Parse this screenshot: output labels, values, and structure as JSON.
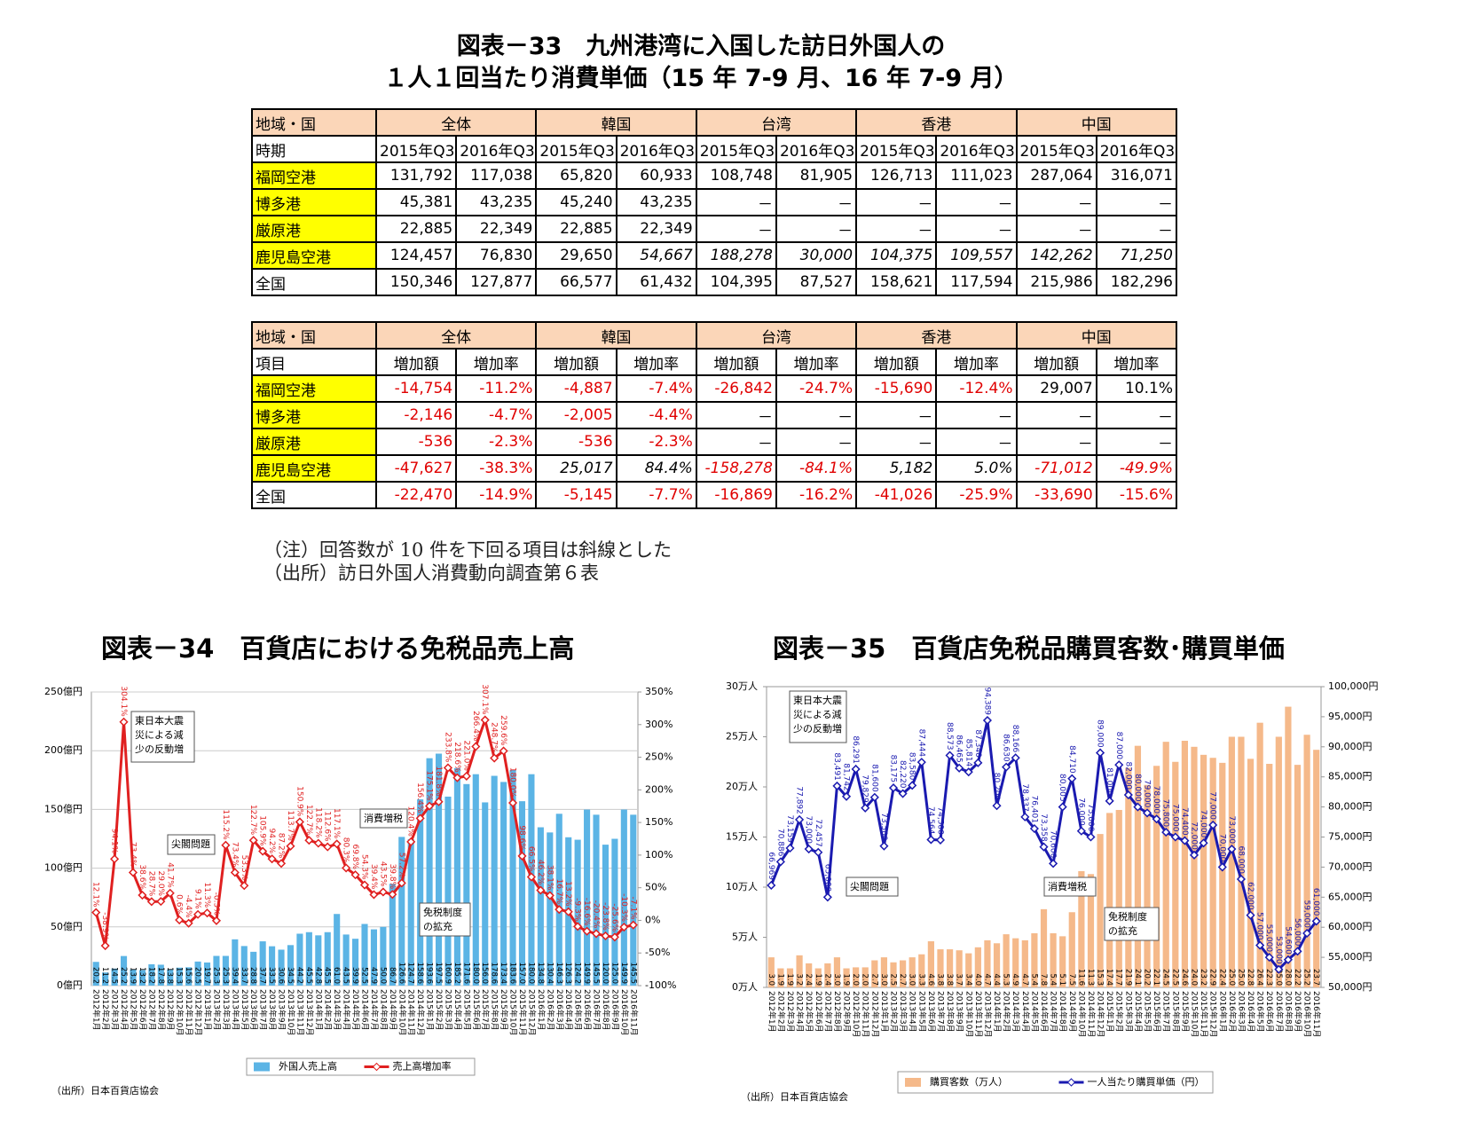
{
  "header": {
    "title_lines": [
      "図表－33　九州港湾に入国した訪日外国人の",
      "１人１回当たり消費単価（15 年 7-9 月、16 年 7-9 月）"
    ]
  },
  "table1": {
    "header": [
      "地域・国",
      "全体",
      "韓国",
      "台湾",
      "香港",
      "中国"
    ],
    "subheader": [
      "時期",
      "2015年Q3",
      "2016年Q3",
      "2015年Q3",
      "2016年Q3",
      "2015年Q3",
      "2016年Q3",
      "2015年Q3",
      "2016年Q3",
      "2015年Q3",
      "2016年Q3"
    ],
    "rows": [
      [
        "福岡空港",
        "131,792",
        "117,038",
        "65,820",
        "60,933",
        "108,748",
        "81,905",
        "126,713",
        "111,023",
        "287,064",
        "316,071"
      ],
      [
        "博多港",
        "45,381",
        "43,235",
        "45,240",
        "43,235",
        "－",
        "－",
        "－",
        "－",
        "－",
        "－"
      ],
      [
        "厳原港",
        "22,885",
        "22,349",
        "22,885",
        "22,349",
        "－",
        "－",
        "－",
        "－",
        "－",
        "－"
      ],
      [
        "鹿児島空港",
        "124,457",
        "76,830",
        "29,650",
        "54,667",
        "188,278",
        "30,000",
        "104,375",
        "109,557",
        "142,262",
        "71,250"
      ],
      [
        "全国",
        "150,346",
        "127,877",
        "66,577",
        "61,432",
        "104,395",
        "87,527",
        "158,621",
        "117,594",
        "215,986",
        "182,296"
      ]
    ]
  },
  "table2": {
    "header": [
      "地域・国",
      "全体",
      "韓国",
      "台湾",
      "香港",
      "中国"
    ],
    "subheader": [
      "項目",
      "増加額",
      "増加率",
      "増加額",
      "増加率",
      "増加額",
      "増加率",
      "増加額",
      "増加率",
      "増加額",
      "増加率"
    ],
    "rows": [
      [
        "福岡空港",
        "-14,754",
        "-11.2%",
        "-4,887",
        "-7.4%",
        "-26,842",
        "-24.7%",
        "-15,690",
        "-12.4%",
        "29,007",
        "10.1%"
      ],
      [
        "博多港",
        "-2,146",
        "-4.7%",
        "-2,005",
        "-4.4%",
        "－",
        "－",
        "－",
        "－",
        "－",
        "－"
      ],
      [
        "厳原港",
        "-536",
        "-2.3%",
        "-536",
        "-2.3%",
        "－",
        "－",
        "－",
        "－",
        "－",
        "－"
      ],
      [
        "鹿児島空港",
        "-47,627",
        "-38.3%",
        "25,017",
        "84.4%",
        "-158,278",
        "-84.1%",
        "5,182",
        "5.0%",
        "-71,012",
        "-49.9%"
      ],
      [
        "全国",
        "-22,470",
        "-14.9%",
        "-5,145",
        "-7.7%",
        "-16,869",
        "-16.2%",
        "-41,026",
        "-25.9%",
        "-33,690",
        "-15.6%"
      ]
    ]
  },
  "notes": [
    "（注）回答数が 10 件を下回る項目は斜線とした",
    "（出所）訪日外国人消費動向調査第６表"
  ],
  "chart_data": [
    {
      "type": "combo",
      "title": "図表－34　百貨店における免税品売上高",
      "categories": [
        "2012年1月",
        "2012年2月",
        "2012年3月",
        "2012年4月",
        "2012年5月",
        "2012年6月",
        "2012年7月",
        "2012年8月",
        "2012年9月",
        "2012年10月",
        "2012年11月",
        "2012年12月",
        "2013年1月",
        "2013年2月",
        "2013年3月",
        "2013年4月",
        "2013年5月",
        "2013年6月",
        "2013年7月",
        "2013年8月",
        "2013年9月",
        "2013年10月",
        "2013年11月",
        "2013年12月",
        "2014年1月",
        "2014年2月",
        "2014年3月",
        "2014年4月",
        "2014年5月",
        "2014年6月",
        "2014年7月",
        "2014年8月",
        "2014年9月",
        "2014年10月",
        "2014年11月",
        "2014年12月",
        "2015年1月",
        "2015年2月",
        "2015年3月",
        "2015年4月",
        "2015年5月",
        "2015年6月",
        "2015年7月",
        "2015年8月",
        "2015年9月",
        "2015年10月",
        "2015年11月",
        "2015年12月",
        "2016年1月",
        "2016年2月",
        "2016年3月",
        "2016年4月",
        "2016年5月",
        "2016年6月",
        "2016年7月",
        "2016年8月",
        "2016年9月",
        "2016年10月",
        "2016年11月"
      ],
      "series": [
        {
          "name": "外国人売上高",
          "color": "#5bb4e5",
          "values": [
            20.2,
            11.2,
            14.5,
            25.2,
            13.9,
            13.2,
            18.2,
            17.8,
            13.8,
            15.3,
            15.6,
            20.5,
            19.7,
            25.3,
            25.3,
            39.4,
            33.7,
            28.8,
            37.7,
            33.5,
            30.6,
            34.5,
            44.2,
            45.5,
            42.8,
            45.5,
            61.0,
            43.5,
            39.9,
            52.5,
            47.9,
            50.0,
            86.7,
            126.6,
            124.7,
            158.6,
            193.6,
            197.5,
            160.9,
            185.2,
            171.6,
            180.0,
            156.0,
            178.6,
            173.4,
            183.6,
            157.0,
            180.0,
            134.8,
            130.4,
            146.3,
            126.3,
            124.2,
            149.9,
            145.5,
            120.0,
            125.0,
            149.9,
            145.5
          ],
          "value_labels": [
            "20.2",
            "11.2",
            "14.5",
            "25.2",
            "13.9",
            "13.2",
            "18.2",
            "17.8",
            "13.8",
            "15.3",
            "15.6",
            "20.5",
            "19.7",
            "25.3",
            "25.3",
            "39.4",
            "33.7",
            "28.8",
            "37.7",
            "33.5",
            "30.6",
            "34.5",
            "44.2",
            "45.5",
            "42.8",
            "45.5",
            "61.0",
            "43.5",
            "39.9",
            "52.5",
            "47.9",
            "50.0",
            "86.7",
            "126.6",
            "124.7",
            "158.6",
            "193.6",
            "197.5",
            "160.9",
            "185.2",
            "171.6",
            "180.0",
            "156.0",
            "178.6",
            "173.4",
            "183.6",
            "157.0",
            "180.0",
            "134.8",
            "130.4",
            "146.3",
            "126.3",
            "124.2",
            "149.9",
            "145.5",
            "120.0",
            "125.0",
            "149.9",
            "145.5"
          ]
        },
        {
          "name": "売上高増加率",
          "color": "#e02020",
          "axis": "y2",
          "values": [
            12.1,
            -38.9,
            94.1,
            304.1,
            73.4,
            38.6,
            28.7,
            29.0,
            41.7,
            0.6,
            -4.4,
            9.1,
            11.3,
            -0.5,
            115.2,
            73.4,
            53.3,
            122.7,
            105.9,
            94.2,
            87.2,
            113.7,
            150.9,
            122.7,
            118.2,
            112.6,
            117.1,
            80.3,
            69.8,
            54.3,
            39.4,
            43.5,
            39.8,
            57.2,
            120.4,
            156.4,
            175.1,
            181.8,
            233.8,
            218.6,
            221.0,
            266.4,
            307.1,
            248.7,
            259.6,
            180.0,
            98.6,
            66.5,
            46.2,
            38.1,
            16.7,
            13.2,
            -9.3,
            -16.6,
            -20.4,
            -23.8,
            -25.6,
            -10.3,
            -7.1
          ],
          "value_labels": [
            "12.1%",
            "-38.9%",
            "94.1%",
            "304.1%",
            "73.4%",
            "38.6%",
            "28.7%",
            "29.0%",
            "41.7%",
            "0.6%",
            "-4.4%",
            "9.1%",
            "11.3%",
            "-0.5%",
            "115.2%",
            "73.4%",
            "53.3%",
            "122.7%",
            "105.9%",
            "94.2%",
            "87.2%",
            "113.7%",
            "150.9%",
            "122.7%",
            "118.2%",
            "112.6%",
            "117.1%",
            "80.3%",
            "69.8%",
            "54.3%",
            "39.4%",
            "43.5%",
            "39.8%",
            "57.2%",
            "120.4%",
            "156.4%",
            "175.1%",
            "181.8%",
            "233.8%",
            "218.6%",
            "221.0%",
            "266.4%",
            "307.1%",
            "248.7%",
            "259.6%",
            "180.0%",
            "98.6%",
            "66.5%",
            "46.2%",
            "38.1%",
            "16.7%",
            "13.2%",
            "-9.3%",
            "-16.6%",
            "-20.4%",
            "-23.8%",
            "-25.6%",
            "-10.3%",
            "-7.1%"
          ]
        }
      ],
      "ylim": [
        0,
        250
      ],
      "yticks": [
        {
          "value": 0,
          "label": "0億円"
        },
        {
          "value": 50,
          "label": "50億円"
        },
        {
          "value": 100,
          "label": "100億円"
        },
        {
          "value": 150,
          "label": "150億円"
        },
        {
          "value": 200,
          "label": "200億円"
        },
        {
          "value": 250,
          "label": "250億円"
        }
      ],
      "y2lim": [
        -100,
        350
      ],
      "y2ticks": [
        {
          "value": -100,
          "label": "-100%"
        },
        {
          "value": -50,
          "label": "-50%"
        },
        {
          "value": 0,
          "label": "0%"
        },
        {
          "value": 50,
          "label": "50%"
        },
        {
          "value": 100,
          "label": "100%"
        },
        {
          "value": 150,
          "label": "150%"
        },
        {
          "value": 200,
          "label": "200%"
        },
        {
          "value": 250,
          "label": "250%"
        },
        {
          "value": 300,
          "label": "300%"
        },
        {
          "value": 350,
          "label": "350%"
        }
      ],
      "grid": true,
      "annotations": [
        [
          "東日本大震",
          "災による減",
          "少の反動増"
        ],
        [
          "尖閣問題"
        ],
        [
          "消費増税"
        ],
        [
          "免税制度",
          "の拡充"
        ]
      ],
      "source": "（出所）日本百貨店協会"
    },
    {
      "type": "combo",
      "title": "図表－35　百貨店免税品購買客数･購買単価",
      "categories": [
        "2012年1月",
        "2012年2月",
        "2012年3月",
        "2012年4月",
        "2012年5月",
        "2012年6月",
        "2012年7月",
        "2012年8月",
        "2012年9月",
        "2012年10月",
        "2012年11月",
        "2012年12月",
        "2013年1月",
        "2013年2月",
        "2013年3月",
        "2013年4月",
        "2013年5月",
        "2013年6月",
        "2013年7月",
        "2013年8月",
        "2013年9月",
        "2013年10月",
        "2013年11月",
        "2013年12月",
        "2014年1月",
        "2014年2月",
        "2014年3月",
        "2014年4月",
        "2014年5月",
        "2014年6月",
        "2014年7月",
        "2014年8月",
        "2014年9月",
        "2014年10月",
        "2014年11月",
        "2014年12月",
        "2015年1月",
        "2015年2月",
        "2015年3月",
        "2015年4月",
        "2015年5月",
        "2015年6月",
        "2015年7月",
        "2015年8月",
        "2015年9月",
        "2015年10月",
        "2015年11月",
        "2015年12月",
        "2016年1月",
        "2016年2月",
        "2016年3月",
        "2016年4月",
        "2016年5月",
        "2016年6月",
        "2016年7月",
        "2016年8月",
        "2016年9月",
        "2016年10月",
        "2016年11月"
      ],
      "series": [
        {
          "name": "購買客数（万人）",
          "color": "#f5b98a",
          "values": [
            3.0,
            1.9,
            1.9,
            3.2,
            2.4,
            1.9,
            2.4,
            3.0,
            1.9,
            2.0,
            2.0,
            2.7,
            3.0,
            2.5,
            2.7,
            3.0,
            3.3,
            4.6,
            3.8,
            3.8,
            3.7,
            3.4,
            4.0,
            4.7,
            4.4,
            5.3,
            4.9,
            4.7,
            5.4,
            7.8,
            5.4,
            5.1,
            7.5,
            11.6,
            11.3,
            15.3,
            17.4,
            17.7,
            21.9,
            24.1,
            20.2,
            22.1,
            24.5,
            22.5,
            24.6,
            24.0,
            23.2,
            22.9,
            22.4,
            25.0,
            25.0,
            22.8,
            26.4,
            22.3,
            25.0,
            28.0,
            22.2,
            25.2,
            23.7
          ],
          "value_labels": [
            "3.0",
            "1.9",
            "1.9",
            "3.2",
            "2.4",
            "1.9",
            "2.4",
            "3.0",
            "1.9",
            "2.0",
            "2.0",
            "2.7",
            "3.0",
            "2.5",
            "2.7",
            "3.0",
            "3.3",
            "4.6",
            "3.8",
            "3.8",
            "3.7",
            "3.4",
            "4.0",
            "4.7",
            "4.4",
            "5.3",
            "4.9",
            "4.7",
            "5.4",
            "7.8",
            "5.4",
            "5.1",
            "7.5",
            "11.6",
            "11.3",
            "15.3",
            "17.4",
            "17.7",
            "21.9",
            "24.1",
            "20.2",
            "22.1",
            "24.5",
            "22.5",
            "24.6",
            "24.0",
            "23.2",
            "22.9",
            "22.4",
            "25.0",
            "25.0",
            "22.8",
            "26.4",
            "22.3",
            "25.0",
            "28.0",
            "22.2",
            "25.2",
            "23.7"
          ]
        },
        {
          "name": "一人当たり購買単価（円）",
          "color": "#1a1ab0",
          "axis": "y2",
          "values": [
            66969,
            70886,
            73159,
            77892,
            73000,
            72457,
            65000,
            83491,
            81742,
            86291,
            79829,
            81600,
            73500,
            83175,
            82220,
            83580,
            87444,
            74564,
            74500,
            88573,
            86465,
            85814,
            87340,
            94389,
            80200,
            86630,
            88166,
            78337,
            76401,
            73358,
            70600,
            80005,
            84710,
            76000,
            75000,
            89000,
            81000,
            87000,
            82000,
            80000,
            79000,
            78000,
            75800,
            75000,
            74400,
            72000,
            74000,
            77000,
            70000,
            73000,
            68000,
            62000,
            57000,
            55000,
            53000,
            54600,
            56000,
            59000,
            61000
          ],
          "value_labels": [
            "66,969",
            "70,886",
            "73,159",
            "77,892",
            "73,000",
            "72,457",
            "65,000",
            "83,491",
            "81,742",
            "86,291",
            "79,829",
            "81,600",
            "73,500",
            "83,175",
            "82,220",
            "83,580",
            "87,444",
            "74,564",
            "74,500",
            "88,573",
            "86,465",
            "85,814",
            "87,340",
            "94,389",
            "80,200",
            "86,630",
            "88,166",
            "78,337",
            "76,401",
            "73,358",
            "70,600",
            "80,005",
            "84,710",
            "76,000",
            "75,000",
            "89,000",
            "81,000",
            "87,000",
            "82,000",
            "80,000",
            "79,000",
            "78,000",
            "75,800",
            "75,000",
            "74,400",
            "72,000",
            "74,000",
            "77,000",
            "70,000",
            "73,000",
            "68,000",
            "62,000",
            "57,000",
            "55,000",
            "53,000",
            "54,600",
            "56,000",
            "59,000",
            "61,000"
          ]
        }
      ],
      "ylim": [
        0,
        30
      ],
      "yticks": [
        {
          "value": 0,
          "label": "0万人"
        },
        {
          "value": 5,
          "label": "5万人"
        },
        {
          "value": 10,
          "label": "10万人"
        },
        {
          "value": 15,
          "label": "15万人"
        },
        {
          "value": 20,
          "label": "20万人"
        },
        {
          "value": 25,
          "label": "25万人"
        },
        {
          "value": 30,
          "label": "30万人"
        }
      ],
      "y2lim": [
        50000,
        100000
      ],
      "y2ticks": [
        {
          "value": 50000,
          "label": "50,000円"
        },
        {
          "value": 55000,
          "label": "55,000円"
        },
        {
          "value": 60000,
          "label": "60,000円"
        },
        {
          "value": 65000,
          "label": "65,000円"
        },
        {
          "value": 70000,
          "label": "70,000円"
        },
        {
          "value": 75000,
          "label": "75,000円"
        },
        {
          "value": 80000,
          "label": "80,000円"
        },
        {
          "value": 85000,
          "label": "85,000円"
        },
        {
          "value": 90000,
          "label": "90,000円"
        },
        {
          "value": 95000,
          "label": "95,000円"
        },
        {
          "value": 100000,
          "label": "100,000円"
        }
      ],
      "grid": false,
      "annotations": [
        [
          "東日本大震",
          "災による減",
          "少の反動増"
        ],
        [
          "尖閣問題"
        ],
        [
          "消費増税"
        ],
        [
          "免税制度",
          "の拡充"
        ]
      ],
      "source": "（出所）日本百貨店協会"
    }
  ]
}
